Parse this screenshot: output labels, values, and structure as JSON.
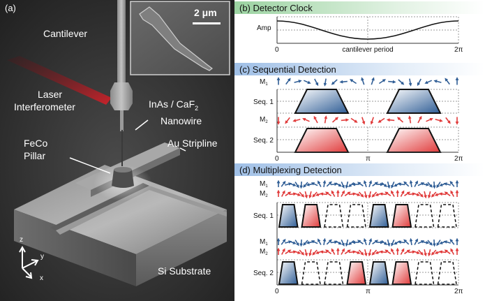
{
  "panel_a": {
    "tag": "(a)",
    "scale_bar": "2 μm",
    "labels": {
      "cantilever": "Cantilever",
      "laser_line1": "Laser",
      "laser_line2": "Interferometer",
      "nanowire_line1": "InAs / CaF",
      "nanowire_sub": "2",
      "nanowire_line2": "Nanowire",
      "pillar_line1": "FeCo",
      "pillar_line2": "Pillar",
      "stripline": "Au Stripline",
      "substrate": "Si Substrate"
    },
    "axes": {
      "z": "z",
      "y": "y",
      "x": "x"
    }
  },
  "panel_b": {
    "title": "(b) Detector Clock",
    "amp_label": "Amp",
    "x_start": "0",
    "x_mid_label": "cantilever period",
    "x_end": "2π"
  },
  "panel_c": {
    "title": "(c) Sequential Detection",
    "m1": "M",
    "m1_sub": "1",
    "m2": "M",
    "m2_sub": "2",
    "seq1": "Seq. 1",
    "seq2": "Seq. 2",
    "x_start": "0",
    "x_mid": "π",
    "x_end": "2π"
  },
  "panel_d": {
    "title": "(d) Multiplexing Detection",
    "m1": "M",
    "m1_sub": "1",
    "m2": "M",
    "m2_sub": "2",
    "seq1": "Seq. 1",
    "seq2": "Seq. 2",
    "x_start": "0",
    "x_mid": "π",
    "x_end": "2π"
  },
  "colors": {
    "blue": "#2f5d95",
    "red": "#e03a3a",
    "bg_dark": "#2b2b2b",
    "grid": "#9a9a9a"
  }
}
